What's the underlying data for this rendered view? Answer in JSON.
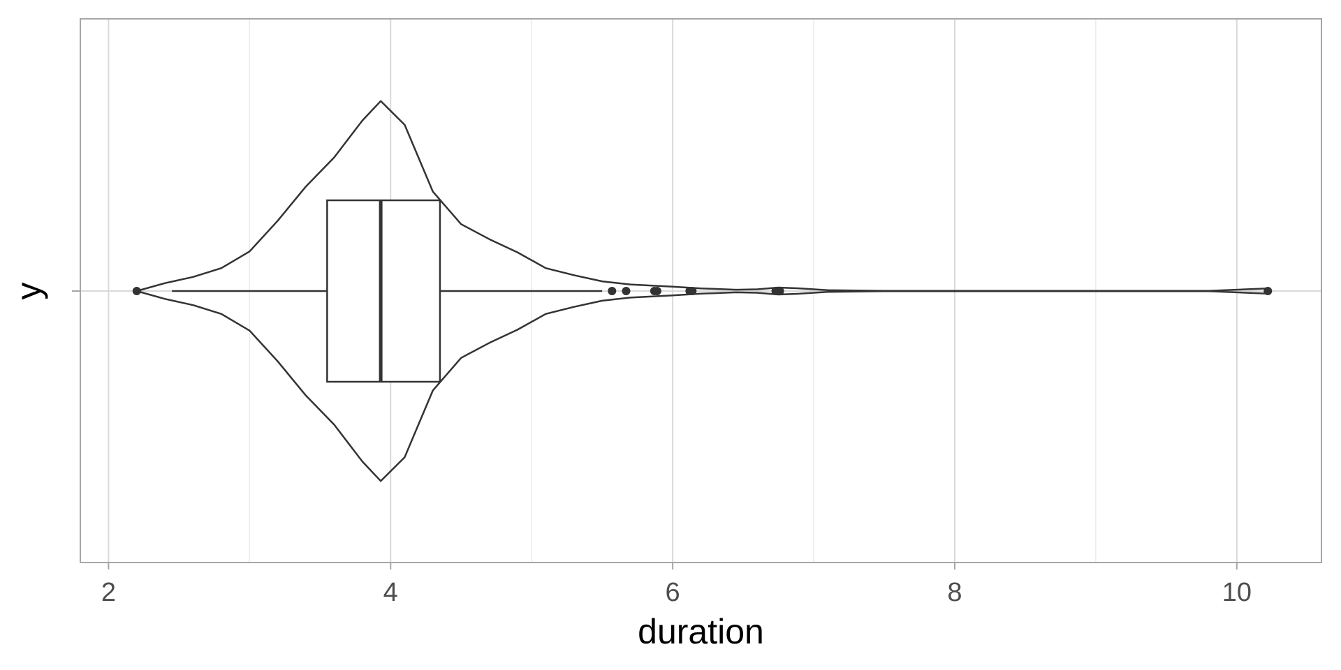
{
  "chart_data": {
    "type": "violin",
    "title": "",
    "xlabel": "duration",
    "ylabel": "y",
    "xlim": [
      1.8,
      10.6
    ],
    "x_ticks": [
      2,
      4,
      6,
      8,
      10
    ],
    "x_tick_labels": [
      "2",
      "4",
      "6",
      "8",
      "10"
    ],
    "grid": true,
    "box": {
      "q1": 3.55,
      "median": 3.93,
      "q3": 4.35,
      "whisker_low": 2.45,
      "whisker_high": 5.5
    },
    "outliers": [
      2.2,
      5.57,
      5.67,
      5.87,
      5.89,
      6.12,
      6.14,
      6.73,
      6.76,
      10.22
    ],
    "violin_density": [
      [
        2.2,
        0.0
      ],
      [
        2.4,
        0.036
      ],
      [
        2.6,
        0.064
      ],
      [
        2.8,
        0.104
      ],
      [
        3.0,
        0.18
      ],
      [
        3.2,
        0.32
      ],
      [
        3.4,
        0.476
      ],
      [
        3.6,
        0.608
      ],
      [
        3.8,
        0.776
      ],
      [
        3.93,
        0.864
      ],
      [
        4.1,
        0.756
      ],
      [
        4.3,
        0.452
      ],
      [
        4.5,
        0.304
      ],
      [
        4.7,
        0.236
      ],
      [
        4.9,
        0.176
      ],
      [
        5.1,
        0.104
      ],
      [
        5.3,
        0.072
      ],
      [
        5.5,
        0.044
      ],
      [
        5.7,
        0.03
      ],
      [
        6.0,
        0.02
      ],
      [
        6.2,
        0.012
      ],
      [
        6.45,
        0.006
      ],
      [
        6.6,
        0.008
      ],
      [
        6.75,
        0.016
      ],
      [
        6.9,
        0.012
      ],
      [
        7.1,
        0.004
      ],
      [
        7.5,
        0.001
      ],
      [
        9.8,
        0.001
      ],
      [
        10.22,
        0.012
      ]
    ],
    "colors": {
      "outline": "#333333",
      "box_fill": "#ffffff",
      "grid_major": "#d9d9d9",
      "grid_minor": "#ebebeb",
      "panel_border": "#a6a6a6",
      "tick_label": "#4d4d4d"
    }
  }
}
